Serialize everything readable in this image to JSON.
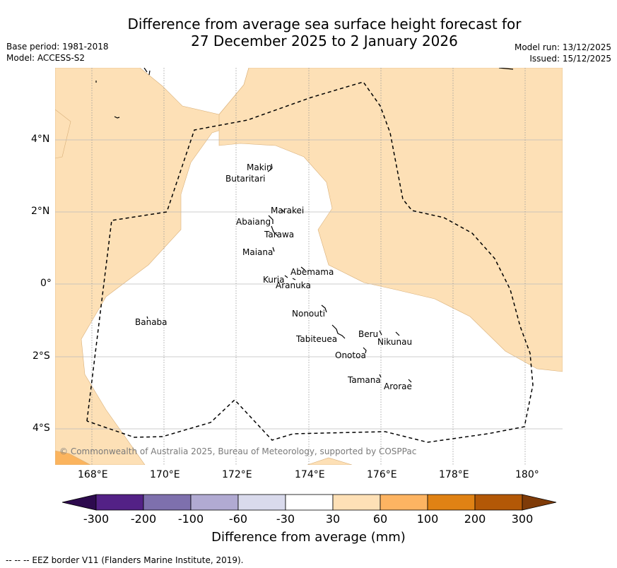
{
  "header": {
    "title_line1": "Difference from average sea surface height forecast for",
    "title_line2": "27 December 2025 to 2 January 2026",
    "base_period": "Base period: 1981-2018",
    "model": "Model: ACCESS-S2",
    "model_run": "Model run: 13/12/2025",
    "issued": "Issued: 15/12/2025"
  },
  "map": {
    "copyright": "© Commonwealth of Australia 2025, Bureau of Meteorology, supported by COSPPac",
    "longitude_labels": [
      "168°E",
      "170°E",
      "172°E",
      "174°E",
      "176°E",
      "178°E",
      "180°"
    ],
    "latitude_labels": [
      "4°N",
      "2°N",
      "0°",
      "2°S",
      "4°S"
    ],
    "islands": [
      "Makin",
      "Butaritari",
      "Marakei",
      "Abaiang",
      "Tarawa",
      "Maiana",
      "Abemama",
      "Kuria",
      "Aranuka",
      "Banaba",
      "Nonouti",
      "Beru",
      "Nikunau",
      "Tabiteuea",
      "Onotoa",
      "Tamana",
      "Arorae"
    ],
    "colors": {
      "land_fill": "#fde0b6",
      "band_60_100": "#fbb45e",
      "border": "#000000"
    }
  },
  "colorbar": {
    "tick_labels": [
      "-300",
      "-200",
      "-100",
      "-60",
      "-30",
      "30",
      "60",
      "100",
      "200",
      "300"
    ],
    "label": "Difference from average (mm)",
    "colors": [
      "#2d0a4e",
      "#532186",
      "#7e70ad",
      "#b1aad2",
      "#d9daec",
      "#ffffff",
      "#fee0b6",
      "#fdb462",
      "#e08214",
      "#b35806",
      "#7f3b08"
    ]
  },
  "footer": {
    "eez_note": "--  --  -- EEZ border V11 (Flanders Marine Institute, 2019)."
  }
}
